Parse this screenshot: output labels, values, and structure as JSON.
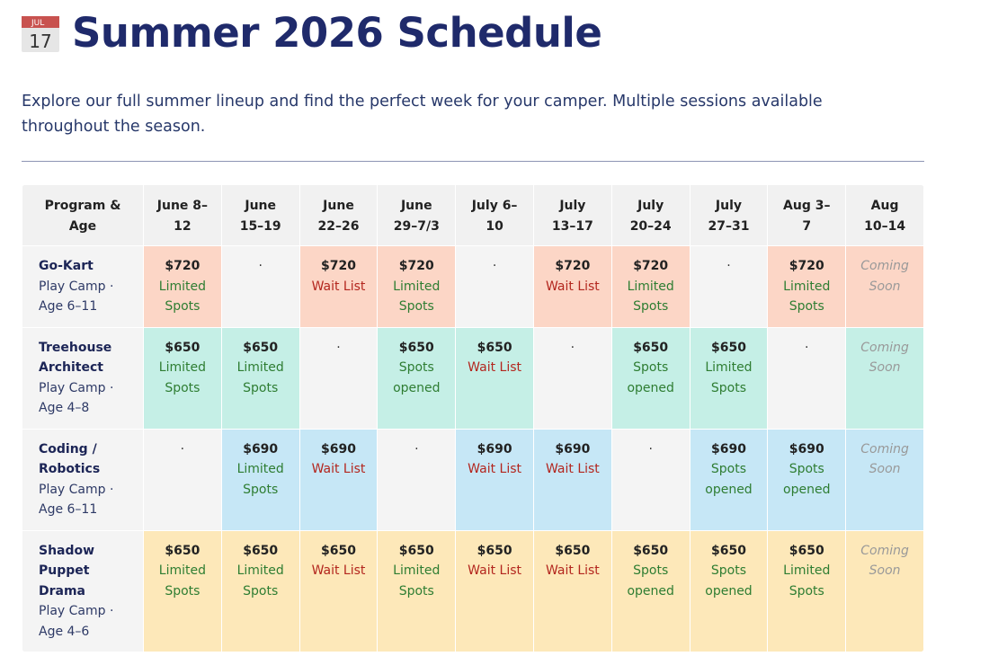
{
  "header": {
    "icon": {
      "month": "JUL",
      "day": "17"
    },
    "title": "Summer 2026 Schedule",
    "description": "Explore our full summer lineup and find the perfect week for your camper. Multiple sessions available throughout the season."
  },
  "table": {
    "columns": [
      "Program & Age",
      "June 8–12",
      "June 15–19",
      "June 22–26",
      "June 29–7/3",
      "July 6–10",
      "July 13–17",
      "July 20–24",
      "July 27–31",
      "Aug 3–7",
      "Aug 10–14"
    ],
    "rows": [
      {
        "name": "Go-Kart",
        "detail": "Play Camp · Age 6–11",
        "color": "#fcd6c6",
        "cells": [
          {
            "price": "$720",
            "status": "Limited Spots",
            "color": "#2e7d32"
          },
          {
            "text": "·"
          },
          {
            "price": "$720",
            "status": "Wait List",
            "color": "#b3261e"
          },
          {
            "price": "$720",
            "status": "Limited Spots",
            "color": "#2e7d32"
          },
          {
            "text": "·"
          },
          {
            "price": "$720",
            "status": "Wait List",
            "color": "#b3261e"
          },
          {
            "price": "$720",
            "status": "Limited Spots",
            "color": "#2e7d32"
          },
          {
            "text": "·"
          },
          {
            "price": "$720",
            "status": "Limited Spots",
            "color": "#2e7d32"
          },
          {
            "note": "Coming Soon"
          }
        ]
      },
      {
        "name": "Treehouse Architect",
        "detail": "Play Camp · Age 4–8",
        "color": "#c5efe6",
        "cells": [
          {
            "price": "$650",
            "status": "Limited Spots",
            "color": "#2e7d32"
          },
          {
            "price": "$650",
            "status": "Limited Spots",
            "color": "#2e7d32"
          },
          {
            "text": "·"
          },
          {
            "price": "$650",
            "status": "Spots opened",
            "color": "#2e7d32"
          },
          {
            "price": "$650",
            "status": "Wait List",
            "color": "#b3261e"
          },
          {
            "text": "·"
          },
          {
            "price": "$650",
            "status": "Spots opened",
            "color": "#2e7d32"
          },
          {
            "price": "$650",
            "status": "Limited Spots",
            "color": "#2e7d32"
          },
          {
            "text": "·"
          },
          {
            "note": "Coming Soon"
          }
        ]
      },
      {
        "name": "Coding / Robotics",
        "detail": "Play Camp · Age 6–11",
        "color": "#c6e7f6",
        "cells": [
          {
            "text": "·"
          },
          {
            "price": "$690",
            "status": "Limited Spots",
            "color": "#2e7d32"
          },
          {
            "price": "$690",
            "status": "Wait List",
            "color": "#b3261e"
          },
          {
            "text": "·"
          },
          {
            "price": "$690",
            "status": "Wait List",
            "color": "#b3261e"
          },
          {
            "price": "$690",
            "status": "Wait List",
            "color": "#b3261e"
          },
          {
            "text": "·"
          },
          {
            "price": "$690",
            "status": "Spots opened",
            "color": "#2e7d32"
          },
          {
            "price": "$690",
            "status": "Spots opened",
            "color": "#2e7d32"
          },
          {
            "note": "Coming Soon"
          }
        ]
      },
      {
        "name": "Shadow Puppet Drama",
        "detail": "Play Camp · Age 4–6",
        "color": "#fde8b9",
        "cells": [
          {
            "price": "$650",
            "status": "Limited Spots",
            "color": "#2e7d32"
          },
          {
            "price": "$650",
            "status": "Limited Spots",
            "color": "#2e7d32"
          },
          {
            "price": "$650",
            "status": "Wait List",
            "color": "#b3261e"
          },
          {
            "price": "$650",
            "status": "Limited Spots",
            "color": "#2e7d32"
          },
          {
            "price": "$650",
            "status": "Wait List",
            "color": "#b3261e"
          },
          {
            "price": "$650",
            "status": "Wait List",
            "color": "#b3261e"
          },
          {
            "price": "$650",
            "status": "Spots opened",
            "color": "#2e7d32"
          },
          {
            "price": "$650",
            "status": "Spots opened",
            "color": "#2e7d32"
          },
          {
            "price": "$650",
            "status": "Limited Spots",
            "color": "#2e7d32"
          },
          {
            "note": "Coming Soon"
          }
        ]
      }
    ]
  }
}
